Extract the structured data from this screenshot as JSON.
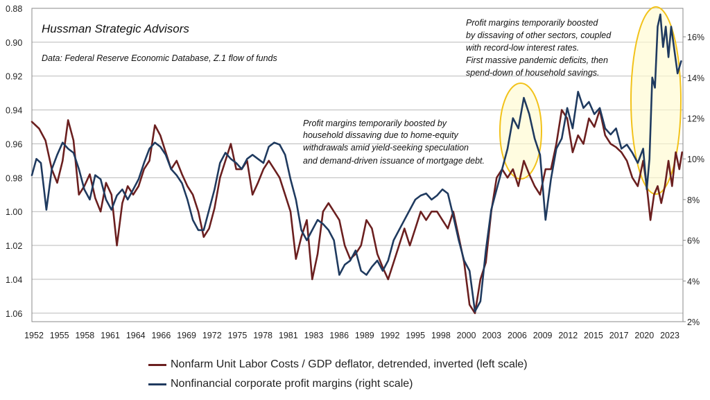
{
  "chart_data": {
    "type": "line",
    "title": "Hussman Strategic Advisors",
    "subtitle": "Data: Federal Reserve Economic Database, Z.1 flow of funds",
    "x_ticks": [
      "1952",
      "1955",
      "1958",
      "1961",
      "1964",
      "1966",
      "1969",
      "1972",
      "1975",
      "1978",
      "1981",
      "1983",
      "1986",
      "1989",
      "1992",
      "1995",
      "1998",
      "2000",
      "2003",
      "2006",
      "2009",
      "2012",
      "2015",
      "2017",
      "2020",
      "2023"
    ],
    "xlim": [
      1952,
      2024
    ],
    "left_axis": {
      "ylim": [
        0.88,
        1.065
      ],
      "inverted": true,
      "ticks": [
        "0.88",
        "0.90",
        "0.92",
        "0.94",
        "0.96",
        "0.98",
        "1.00",
        "1.02",
        "1.04",
        "1.06"
      ]
    },
    "right_axis": {
      "ylim": [
        2,
        17.4
      ],
      "unit": "%",
      "ticks": [
        "2%",
        "4%",
        "6%",
        "8%",
        "10%",
        "12%",
        "14%",
        "16%"
      ]
    },
    "grid": "horizontal",
    "legend_position": "bottom",
    "series": [
      {
        "name": "Nonfarm Unit Labor Costs / GDP deflator, detrended, inverted (left scale)",
        "axis": "left",
        "color": "#6b1f1f",
        "x": [
          1952.0,
          1952.8,
          1953.5,
          1954.2,
          1954.8,
          1955.4,
          1956.0,
          1956.6,
          1957.2,
          1957.8,
          1958.4,
          1959.0,
          1959.6,
          1960.2,
          1960.8,
          1961.4,
          1962.0,
          1962.6,
          1963.2,
          1963.8,
          1964.4,
          1965.0,
          1965.6,
          1966.2,
          1966.8,
          1967.4,
          1968.0,
          1968.6,
          1969.2,
          1969.8,
          1970.4,
          1971.0,
          1971.6,
          1972.2,
          1972.8,
          1973.4,
          1974.0,
          1974.6,
          1975.2,
          1975.8,
          1976.4,
          1977.0,
          1977.6,
          1978.2,
          1978.8,
          1979.4,
          1980.0,
          1980.6,
          1981.2,
          1981.8,
          1982.4,
          1983.0,
          1983.6,
          1984.2,
          1984.8,
          1985.4,
          1986.0,
          1986.6,
          1987.2,
          1987.8,
          1988.4,
          1989.0,
          1989.6,
          1990.2,
          1990.8,
          1991.4,
          1992.0,
          1992.6,
          1993.2,
          1993.8,
          1994.4,
          1995.0,
          1995.6,
          1996.2,
          1996.8,
          1997.4,
          1998.0,
          1998.6,
          1999.2,
          1999.8,
          2000.4,
          2001.0,
          2001.6,
          2002.2,
          2002.8,
          2003.4,
          2004.0,
          2004.6,
          2005.2,
          2005.8,
          2006.4,
          2007.0,
          2007.6,
          2008.2,
          2008.8,
          2009.4,
          2010.0,
          2010.6,
          2011.2,
          2011.8,
          2012.4,
          2013.0,
          2013.6,
          2014.2,
          2014.8,
          2015.4,
          2016.0,
          2016.6,
          2017.2,
          2017.8,
          2018.4,
          2019.0,
          2019.6,
          2020.0,
          2020.4,
          2020.8,
          2021.2,
          2021.6,
          2022.0,
          2022.4,
          2022.8,
          2023.2,
          2023.6,
          2023.9
        ],
        "values": [
          0.947,
          0.951,
          0.958,
          0.975,
          0.983,
          0.97,
          0.946,
          0.958,
          0.99,
          0.985,
          0.978,
          0.992,
          1.0,
          0.983,
          0.99,
          1.02,
          0.995,
          0.985,
          0.99,
          0.985,
          0.975,
          0.97,
          0.949,
          0.955,
          0.965,
          0.975,
          0.97,
          0.978,
          0.985,
          0.99,
          1.0,
          1.015,
          1.01,
          0.998,
          0.98,
          0.97,
          0.96,
          0.975,
          0.975,
          0.97,
          0.99,
          0.983,
          0.975,
          0.97,
          0.975,
          0.98,
          0.99,
          1.0,
          1.028,
          1.015,
          1.005,
          1.04,
          1.025,
          1.0,
          0.995,
          1.0,
          1.005,
          1.02,
          1.028,
          1.025,
          1.02,
          1.005,
          1.01,
          1.025,
          1.033,
          1.04,
          1.03,
          1.02,
          1.01,
          1.02,
          1.01,
          1.0,
          1.005,
          1.0,
          1.0,
          1.005,
          1.01,
          1.0,
          1.015,
          1.03,
          1.055,
          1.06,
          1.04,
          1.03,
          1.0,
          0.98,
          0.975,
          0.98,
          0.975,
          0.985,
          0.97,
          0.978,
          0.985,
          0.99,
          0.975,
          0.975,
          0.96,
          0.94,
          0.945,
          0.965,
          0.955,
          0.96,
          0.945,
          0.95,
          0.94,
          0.955,
          0.96,
          0.962,
          0.965,
          0.97,
          0.98,
          0.985,
          0.97,
          0.985,
          1.005,
          0.99,
          0.985,
          0.995,
          0.985,
          0.97,
          0.985,
          0.965,
          0.975,
          0.965
        ]
      },
      {
        "name": "Nonfinancial corporate profit margins (right scale)",
        "axis": "right",
        "color": "#1f3a5f",
        "x": [
          1952.0,
          1952.5,
          1953.0,
          1953.6,
          1954.2,
          1954.8,
          1955.4,
          1956.0,
          1956.6,
          1957.2,
          1957.8,
          1958.4,
          1959.0,
          1959.6,
          1960.2,
          1960.8,
          1961.4,
          1962.0,
          1962.6,
          1963.2,
          1963.8,
          1964.4,
          1965.0,
          1965.6,
          1966.2,
          1966.8,
          1967.4,
          1968.0,
          1968.6,
          1969.2,
          1969.8,
          1970.4,
          1971.0,
          1971.6,
          1972.2,
          1972.8,
          1973.4,
          1974.0,
          1974.6,
          1975.2,
          1975.8,
          1976.4,
          1977.0,
          1977.6,
          1978.2,
          1978.8,
          1979.4,
          1980.0,
          1980.6,
          1981.2,
          1981.8,
          1982.4,
          1983.0,
          1983.6,
          1984.2,
          1984.8,
          1985.4,
          1986.0,
          1986.6,
          1987.2,
          1987.8,
          1988.4,
          1989.0,
          1989.6,
          1990.2,
          1990.8,
          1991.4,
          1992.0,
          1992.6,
          1993.2,
          1993.8,
          1994.4,
          1995.0,
          1995.6,
          1996.2,
          1996.8,
          1997.4,
          1998.0,
          1998.6,
          1999.2,
          1999.8,
          2000.4,
          2001.0,
          2001.6,
          2002.2,
          2002.8,
          2003.4,
          2004.0,
          2004.6,
          2005.2,
          2005.8,
          2006.4,
          2007.0,
          2007.6,
          2008.2,
          2008.8,
          2009.4,
          2010.0,
          2010.6,
          2011.2,
          2011.8,
          2012.4,
          2013.0,
          2013.6,
          2014.2,
          2014.8,
          2015.4,
          2016.0,
          2016.6,
          2017.2,
          2017.8,
          2018.4,
          2019.0,
          2019.6,
          2020.0,
          2020.3,
          2020.6,
          2020.9,
          2021.2,
          2021.5,
          2021.8,
          2022.1,
          2022.4,
          2022.7,
          2023.0,
          2023.4,
          2023.8
        ],
        "values": [
          9.2,
          10.0,
          9.8,
          7.5,
          9.5,
          10.2,
          10.8,
          10.5,
          10.3,
          9.5,
          8.5,
          8.0,
          9.2,
          9.0,
          8.0,
          7.5,
          8.2,
          8.5,
          8.0,
          8.5,
          9.0,
          9.8,
          10.5,
          10.8,
          10.6,
          10.2,
          9.5,
          9.2,
          8.8,
          8.0,
          7.0,
          6.5,
          6.5,
          7.5,
          8.5,
          9.8,
          10.3,
          10.0,
          9.8,
          9.5,
          10.0,
          10.2,
          10.0,
          9.8,
          10.6,
          10.8,
          10.7,
          10.2,
          9.0,
          8.0,
          6.5,
          6.0,
          6.5,
          7.0,
          6.8,
          6.5,
          6.0,
          4.3,
          4.8,
          5.0,
          5.5,
          4.5,
          4.3,
          4.7,
          5.0,
          4.5,
          5.0,
          6.0,
          6.5,
          7.0,
          7.5,
          8.0,
          8.2,
          8.3,
          8.0,
          8.2,
          8.5,
          8.3,
          7.2,
          6.0,
          5.0,
          4.5,
          2.5,
          3.0,
          5.5,
          7.5,
          8.5,
          9.5,
          10.5,
          12.0,
          11.5,
          13.0,
          12.2,
          11.0,
          10.2,
          7.0,
          9.0,
          10.5,
          11.0,
          12.5,
          11.5,
          13.3,
          12.5,
          12.8,
          12.2,
          12.5,
          11.5,
          11.2,
          11.5,
          10.5,
          10.7,
          10.3,
          9.8,
          10.5,
          8.5,
          10.0,
          14.0,
          13.5,
          16.5,
          17.1,
          15.5,
          16.5,
          15.0,
          16.5,
          15.5,
          14.2,
          14.8
        ]
      }
    ],
    "annotations": {
      "note_2000s": [
        "Profit margins temporarily boosted by",
        "household dissaving due to home-equity",
        "withdrawals amid yield-seeking speculation",
        "and demand-driven issuance of mortgage debt."
      ],
      "note_2020s": [
        "Profit margins temporarily boosted",
        "by dissaving of other sectors, coupled",
        "with record-low interest rates.",
        "First massive pandemic deficits, then",
        "spend-down of household savings."
      ]
    }
  },
  "legend": {
    "item1": "Nonfarm Unit Labor Costs / GDP deflator, detrended, inverted (left scale)",
    "item2": "Nonfinancial corporate profit margins (right scale)"
  }
}
